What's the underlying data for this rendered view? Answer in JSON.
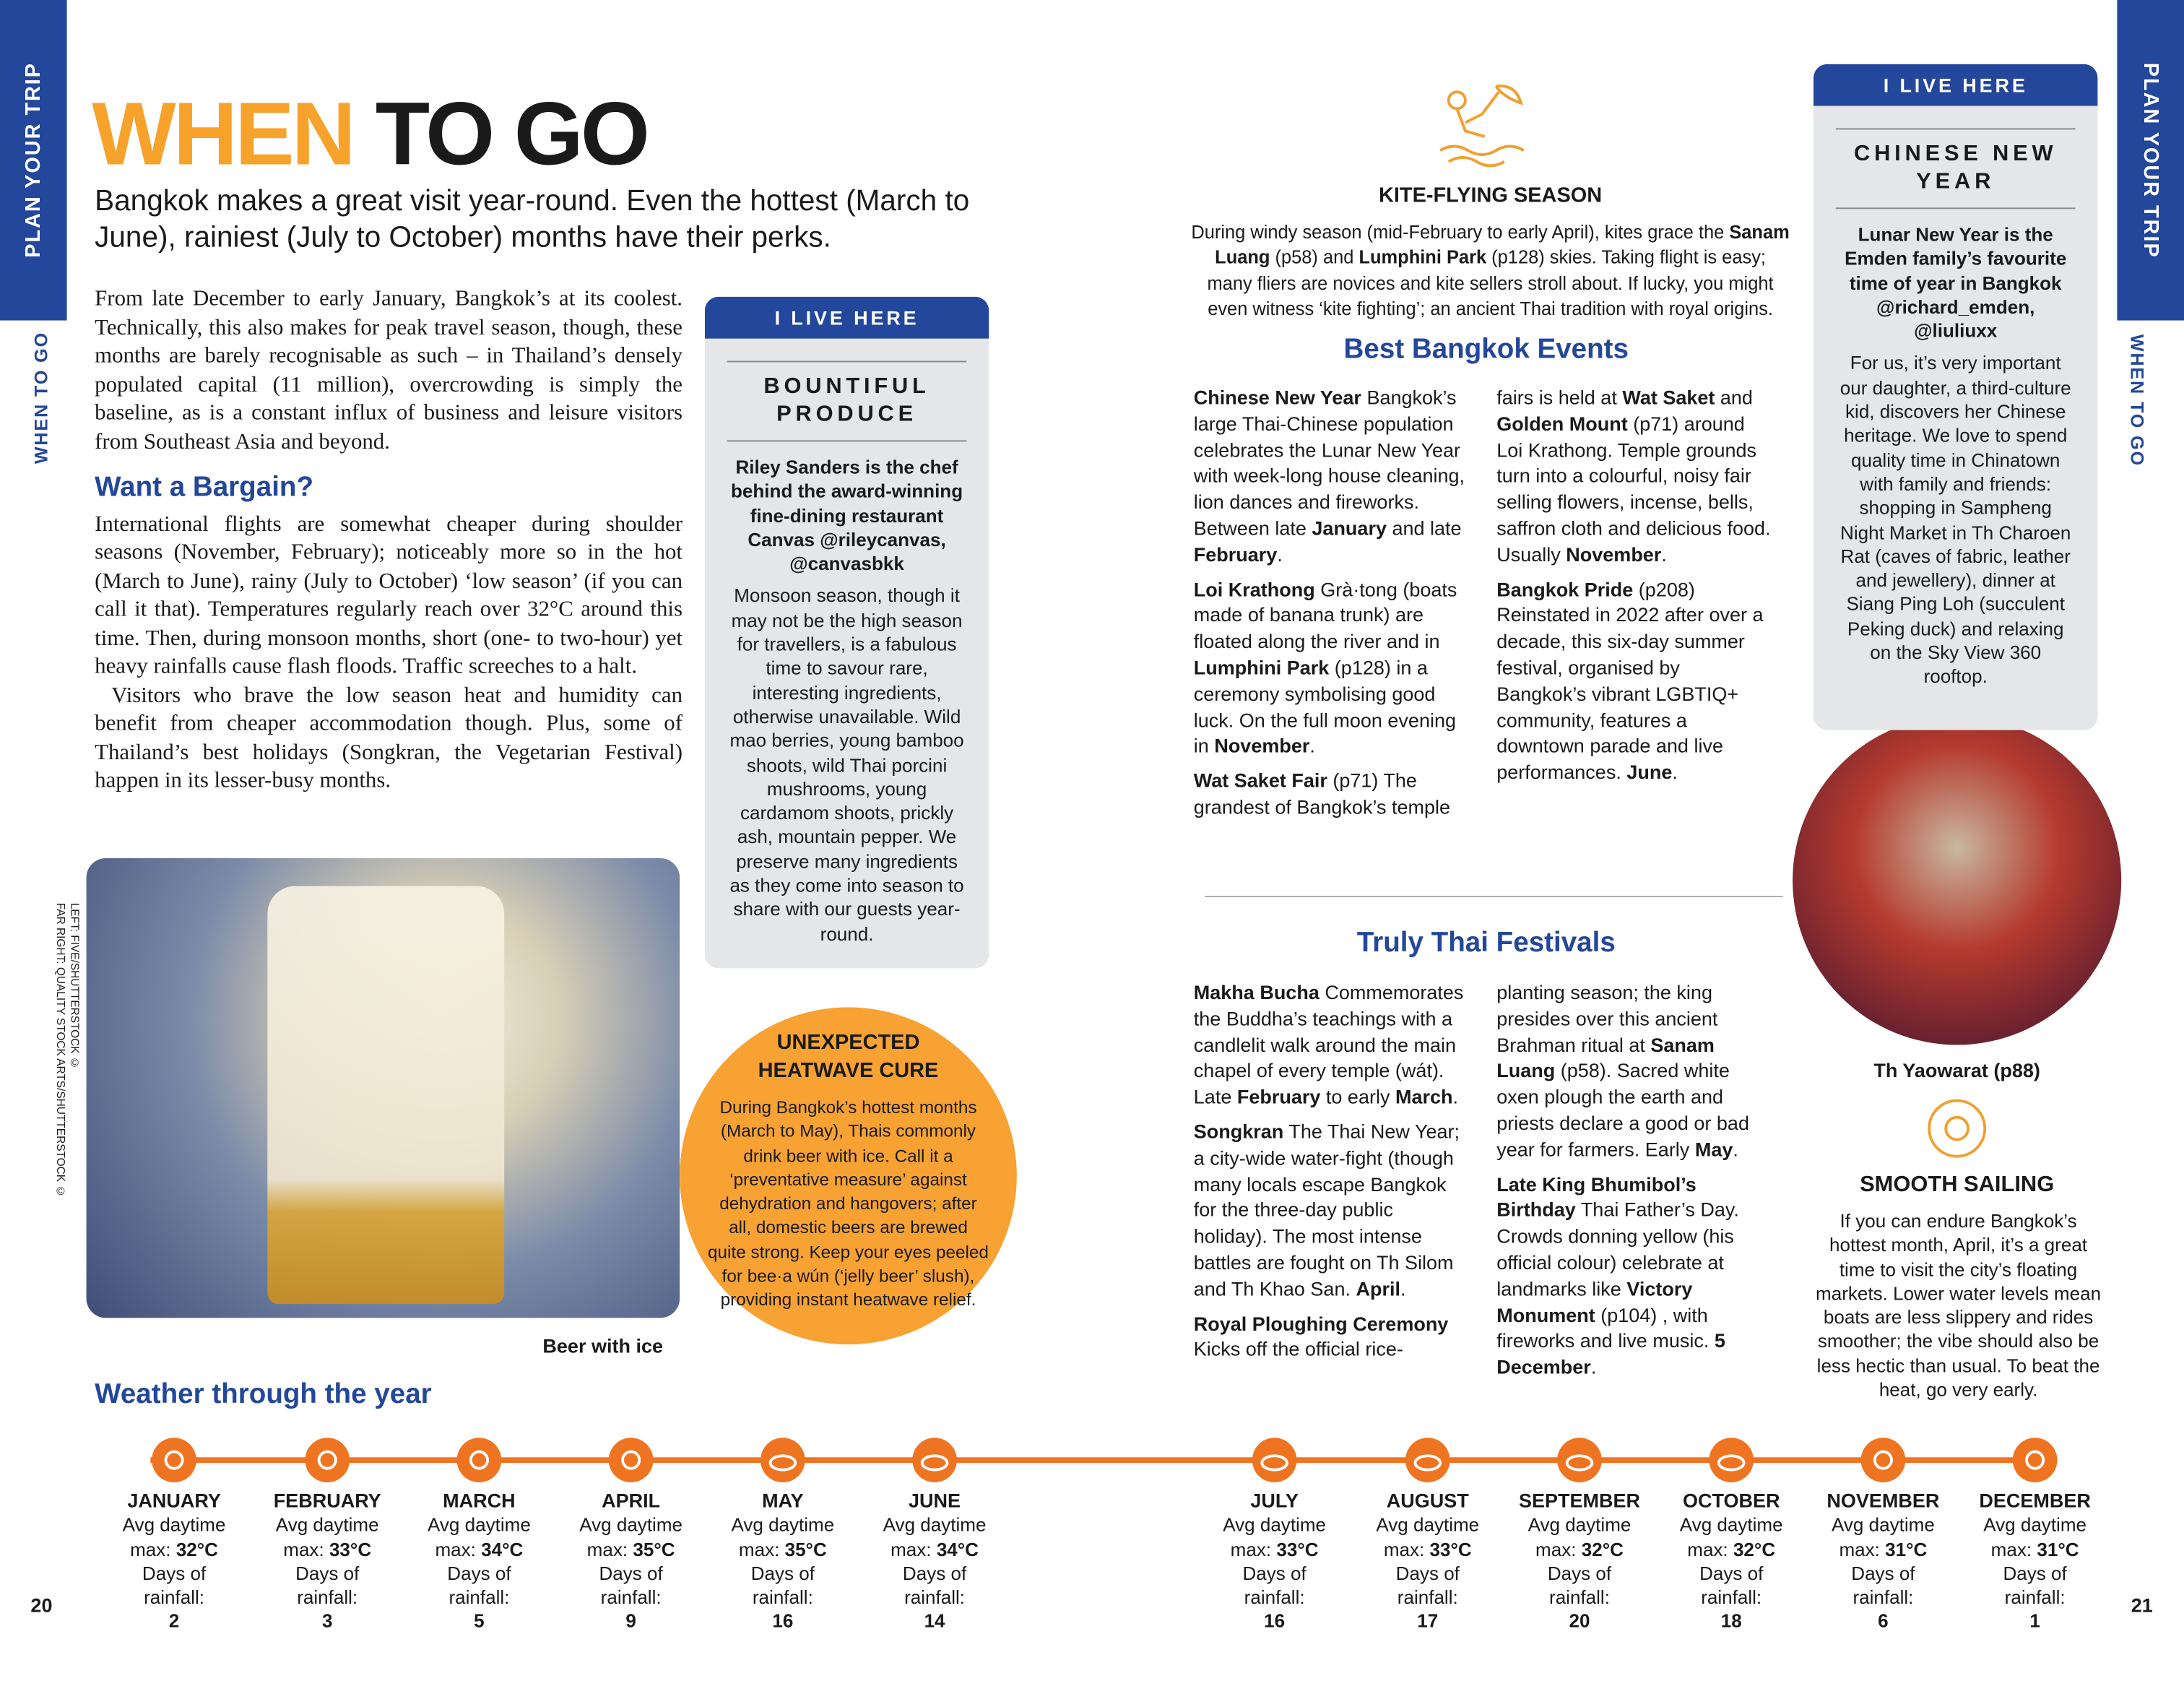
{
  "side_tab_left": {
    "section": "PLAN YOUR TRIP",
    "subsection": "WHEN TO GO"
  },
  "side_tab_right": {
    "section": "PLAN YOUR TRIP",
    "subsection": "WHEN TO GO"
  },
  "page_numbers": [
    "20",
    "21"
  ],
  "title": {
    "accent": "WHEN",
    "rest": "TO GO"
  },
  "intro": "Bangkok makes a great visit year-round. Even the hottest (March to June), rainiest (July to October) months have their perks.",
  "body": {
    "p1": "From late December to early January, Bangkok’s at its coolest. Technically, this also makes for peak travel season, though, these months are barely recognisable as such – in Thailand’s densely populated capital (11 million), overcrowding is simply the baseline, as is a constant influx of business and leisure visitors from Southeast Asia and beyond.",
    "heading": "Want a Bargain?",
    "p2": "International flights are somewhat cheaper during shoulder seasons (November, February); noticeably more so in the hot (March to June), rainy (July to October) ‘low season’ (if you can call it that). Temperatures regularly reach over 32°C around this time. Then, during monsoon months, short (one- to two-hour) yet heavy rainfalls cause flash floods. Traffic screeches to a halt.",
    "p3": "Visitors who brave the low season heat and humidity can benefit from cheaper accommodation though. Plus, some of Thailand’s best holidays (Songkran, the Vegetarian Festival) happen in its lesser-busy months."
  },
  "photo_credit": [
    "LEFT: FIVE/SHUTTERSTOCK ©",
    "FAR RIGHT: QUALITY STOCK ARTS/SHUTTERSTOCK ©"
  ],
  "beer_caption": "Beer with ice",
  "live_here_1": {
    "badge": "I LIVE HERE",
    "title": "BOUNTIFUL PRODUCE",
    "intro": "Riley Sanders is the chef behind the award-winning fine-dining restaurant Canvas @rileycanvas, @canvasbkk",
    "text": "Monsoon season, though it may not be the high season for travellers, is a fabulous time to savour rare, interesting ingredients, otherwise unavailable. Wild mao berries, young bamboo shoots, wild Thai porcini mushrooms, young cardamom shoots, prickly ash, mountain pepper. We preserve many ingredients as they come into season to share with our guests year-round."
  },
  "heatwave": {
    "title": "UNEXPECTED HEATWAVE CURE",
    "text": "During Bangkok’s hottest months (March to May), Thais commonly drink beer with ice. Call it a ‘preventative measure’ against dehydration and hangovers; after all, domestic beers are brewed quite strong. Keep your eyes peeled for bee·a wún (‘jelly beer’ slush), providing instant heatwave relief."
  },
  "kite": {
    "title": "KITE-FLYING SEASON",
    "parts": [
      "During windy season (mid-February to early April), kites grace the ",
      "Sanam Luang",
      " (p58) and ",
      "Lumphini Park",
      " (p128) skies. Taking flight is easy; many fliers are novices and kite sellers stroll about. If lucky, you might even witness ‘kite fighting’; an ancient Thai tradition with royal origins."
    ]
  },
  "events": {
    "heading": "Best Bangkok Events",
    "items": [
      {
        "name": "Chinese New Year",
        "parts": [
          "Bangkok’s large Thai-Chinese population celebrates the Lunar New Year with week-long house cleaning, lion dances and fireworks. Between late ",
          "January",
          " and late ",
          "February",
          "."
        ]
      },
      {
        "name": "Loi Krathong",
        "parts": [
          "Grà·tong (boats made of banana trunk) are floated along the river and in ",
          "Lumphini Park",
          " (p128) in a ceremony symbolising good luck. On the full moon evening in ",
          "November",
          "."
        ]
      },
      {
        "name": "Wat Saket Fair",
        "parts": [
          "(p71) The grandest of Bangkok’s temple fairs is held at ",
          "Wat Saket",
          " and ",
          "Golden Mount",
          " (p71) around Loi Krathong. Temple grounds turn into a colourful, noisy fair selling flowers, incense, bells, saffron cloth and delicious food. Usually ",
          "November",
          "."
        ]
      },
      {
        "name": "Bangkok Pride",
        "parts": [
          "(p208) Reinstated in 2022 after over a decade, this six-day summer festival, organised by Bangkok’s vibrant LGBTIQ+ community, features a downtown parade and live performances. ",
          "June",
          "."
        ]
      }
    ]
  },
  "festivals": {
    "heading": "Truly Thai Festivals",
    "items": [
      {
        "name": "Makha Bucha",
        "parts": [
          "Commemorates the Buddha’s teachings with a candlelit walk around the main chapel of every temple (wát). Late ",
          "February",
          " to early ",
          "March",
          "."
        ]
      },
      {
        "name": "Songkran",
        "parts": [
          "The Thai New Year; a city-wide water-fight (though many locals escape Bangkok for the three-day public holiday). The most intense battles are fought on Th Silom and Th Khao San. ",
          "April",
          "."
        ]
      },
      {
        "name": "Royal Ploughing Ceremony",
        "parts": [
          "Kicks off the official rice-planting season; the king presides over this ancient Brahman ritual at ",
          "Sanam Luang",
          " (p58). Sacred white oxen plough the earth and priests declare a good or bad year for farmers. Early ",
          "May",
          "."
        ]
      },
      {
        "name": "Late King Bhumibol’s Birthday",
        "parts": [
          "Thai Father’s Day. Crowds donning yellow (his official colour) celebrate at landmarks like ",
          "Victory Monument",
          " (p104) , with fireworks and live music. ",
          "5 December",
          "."
        ]
      }
    ]
  },
  "live_here_2": {
    "badge": "I LIVE HERE",
    "title": "CHINESE NEW YEAR",
    "intro": "Lunar New Year is the Emden family’s favourite time of year in Bangkok @richard_emden, @liuliuxx",
    "text": "For us, it’s very important our daughter, a third-culture kid, discovers her Chinese heritage. We love to spend quality time in Chinatown with family and friends: shopping in Sampheng Night Market in Th Charoen Rat (caves of fabric, leather and jewellery), dinner at Siang Ping Loh (succulent Peking duck) and relaxing on the Sky View 360 rooftop."
  },
  "yaowarat_caption": "Th Yaowarat (p88)",
  "sailing": {
    "title": "SMOOTH SAILING",
    "text": "If you can endure Bangkok’s hottest month, April, it’s a great time to visit the city’s floating markets. Lower water levels mean boats are less slippery and rides smoother; the vibe should also be less hectic than usual. To beat the heat, go very early."
  },
  "weather": {
    "heading": "Weather through the year",
    "months": [
      {
        "name": "JANUARY",
        "icon": "sun",
        "max_label": "Avg daytime max:",
        "max": "32°C",
        "rain_label": "Days of rainfall:",
        "rain": "2"
      },
      {
        "name": "FEBRUARY",
        "icon": "sun",
        "max_label": "Avg daytime max:",
        "max": "33°C",
        "rain_label": "Days of rainfall:",
        "rain": "3"
      },
      {
        "name": "MARCH",
        "icon": "sun",
        "max_label": "Avg daytime max:",
        "max": "34°C",
        "rain_label": "Days of rainfall:",
        "rain": "5"
      },
      {
        "name": "APRIL",
        "icon": "sun",
        "max_label": "Avg daytime max:",
        "max": "35°C",
        "rain_label": "Days of rainfall:",
        "rain": "9"
      },
      {
        "name": "MAY",
        "icon": "cloud",
        "max_label": "Avg daytime max:",
        "max": "35°C",
        "rain_label": "Days of rainfall:",
        "rain": "16"
      },
      {
        "name": "JUNE",
        "icon": "cloud",
        "max_label": "Avg daytime max:",
        "max": "34°C",
        "rain_label": "Days of rainfall:",
        "rain": "14"
      },
      {
        "name": "JULY",
        "icon": "cloud",
        "max_label": "Avg daytime max:",
        "max": "33°C",
        "rain_label": "Days of rainfall:",
        "rain": "16"
      },
      {
        "name": "AUGUST",
        "icon": "cloud",
        "max_label": "Avg daytime max:",
        "max": "33°C",
        "rain_label": "Days of rainfall:",
        "rain": "17"
      },
      {
        "name": "SEPTEMBER",
        "icon": "cloud",
        "max_label": "Avg daytime max:",
        "max": "32°C",
        "rain_label": "Days of rainfall:",
        "rain": "20"
      },
      {
        "name": "OCTOBER",
        "icon": "cloud",
        "max_label": "Avg daytime max:",
        "max": "32°C",
        "rain_label": "Days of rainfall:",
        "rain": "18"
      },
      {
        "name": "NOVEMBER",
        "icon": "sun",
        "max_label": "Avg daytime max:",
        "max": "31°C",
        "rain_label": "Days of rainfall:",
        "rain": "6"
      },
      {
        "name": "DECEMBER",
        "icon": "sun",
        "max_label": "Avg daytime max:",
        "max": "31°C",
        "rain_label": "Days of rainfall:",
        "rain": "1"
      }
    ]
  }
}
